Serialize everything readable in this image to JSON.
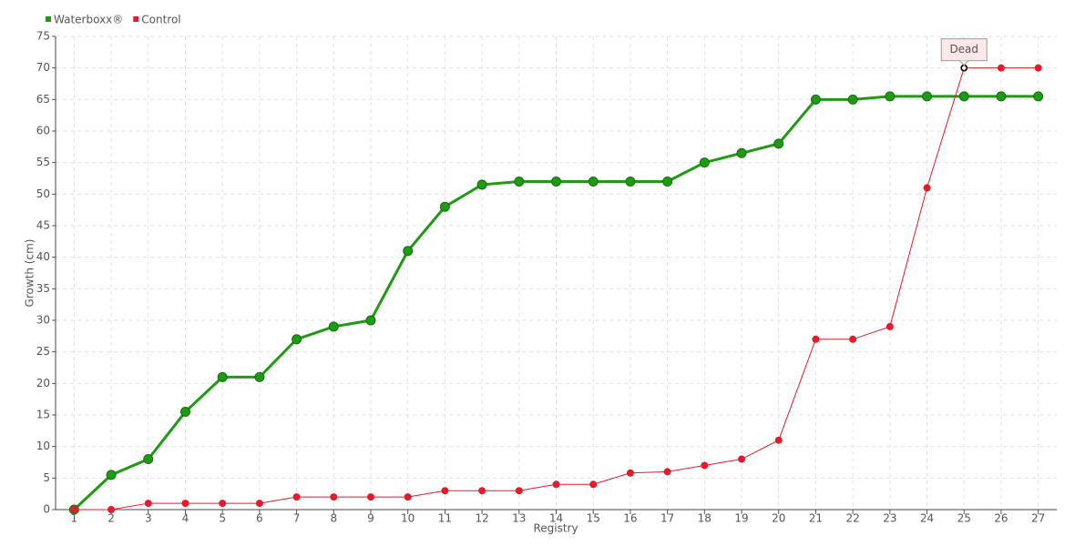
{
  "chart_data": {
    "type": "line",
    "x_label": "Registry",
    "y_label": "Growth (cm)",
    "x": [
      1,
      2,
      3,
      4,
      5,
      6,
      7,
      8,
      9,
      10,
      11,
      12,
      13,
      14,
      15,
      16,
      17,
      18,
      19,
      20,
      21,
      22,
      23,
      24,
      25,
      26,
      27
    ],
    "series": [
      {
        "name": "Waterboxx®",
        "color": "#1f9a14",
        "values": [
          0,
          5.5,
          8,
          15.5,
          21,
          21,
          27,
          29,
          30,
          41,
          48,
          51.5,
          52,
          52,
          52,
          52,
          52,
          55,
          56.5,
          58,
          65,
          65,
          65.5,
          65.5,
          65.5,
          65.5,
          65.5
        ]
      },
      {
        "name": "Control",
        "color": "#e31b2a",
        "values": [
          0,
          0,
          1,
          1,
          1,
          1,
          2,
          2,
          2,
          2,
          3,
          3,
          3,
          4,
          4,
          5.8,
          6,
          7,
          8,
          11,
          27,
          27,
          29,
          51,
          70,
          70,
          70
        ]
      }
    ],
    "xlim": [
      0.5,
      27.5
    ],
    "xticks": [
      1,
      2,
      3,
      4,
      5,
      6,
      7,
      8,
      9,
      10,
      11,
      12,
      13,
      14,
      15,
      16,
      17,
      18,
      19,
      20,
      21,
      22,
      23,
      24,
      25,
      26,
      27
    ],
    "ylim": [
      0,
      75
    ],
    "yticks": [
      0,
      5,
      10,
      15,
      20,
      25,
      30,
      35,
      40,
      45,
      50,
      55,
      60,
      65,
      70,
      75
    ],
    "grid": true,
    "legend": "top-left",
    "annotations": [
      {
        "text": "Dead",
        "x": 25,
        "y": 70
      }
    ]
  }
}
